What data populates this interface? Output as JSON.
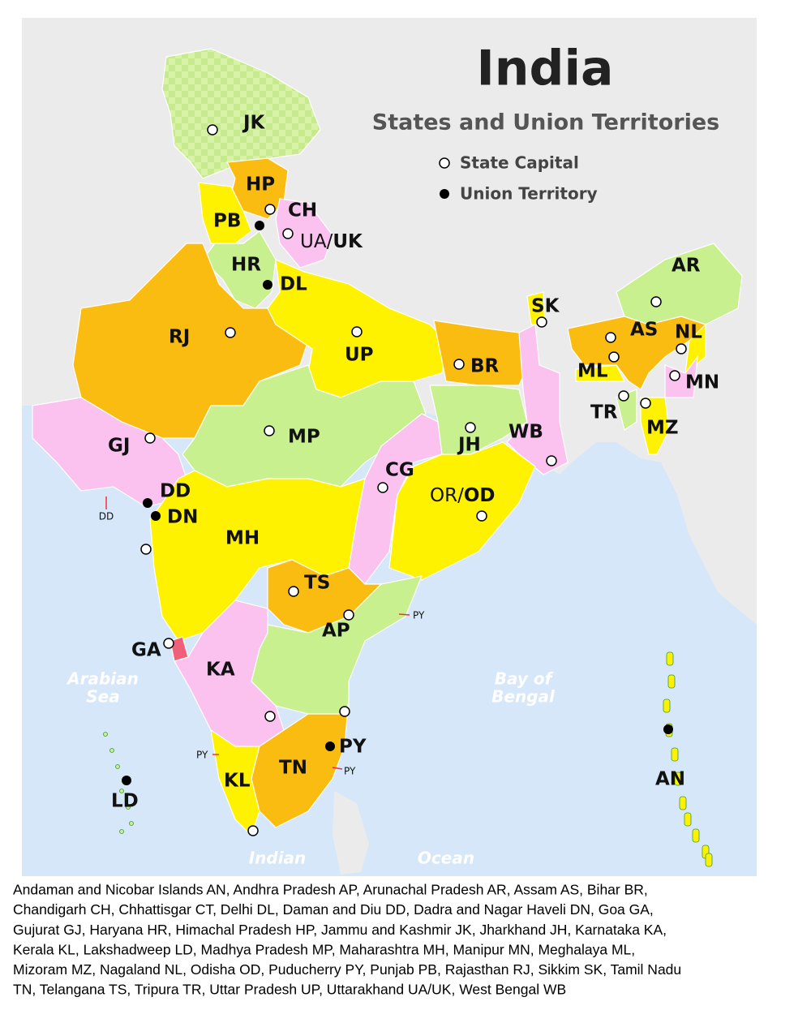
{
  "title": "India",
  "subtitle": "States and Union Territories",
  "legend": [
    {
      "label": "State Capital"
    },
    {
      "label": "Union Territory"
    }
  ],
  "regions": [
    {
      "label": "JK"
    },
    {
      "label": "HP"
    },
    {
      "label": "CH"
    },
    {
      "label": "PB"
    },
    {
      "parts": [
        "UA/",
        "UK"
      ]
    },
    {
      "label": "HR"
    },
    {
      "label": "DL"
    },
    {
      "label": "RJ"
    },
    {
      "label": "UP"
    },
    {
      "label": "BR"
    },
    {
      "label": "SK"
    },
    {
      "label": "AR"
    },
    {
      "label": "AS"
    },
    {
      "label": "NL"
    },
    {
      "label": "ML"
    },
    {
      "label": "MN"
    },
    {
      "label": "TR"
    },
    {
      "label": "MZ"
    },
    {
      "label": "GJ"
    },
    {
      "label": "MP"
    },
    {
      "label": "JH"
    },
    {
      "label": "WB"
    },
    {
      "label": "CG"
    },
    {
      "parts": [
        "OR/",
        "OD"
      ]
    },
    {
      "label": "DD"
    },
    {
      "label": "DN"
    },
    {
      "label": "MH"
    },
    {
      "label": "TS"
    },
    {
      "label": "AP"
    },
    {
      "label": "GA"
    },
    {
      "label": "KA"
    },
    {
      "label": "PY"
    },
    {
      "label": "TN"
    },
    {
      "label": "KL"
    },
    {
      "label": "LD"
    },
    {
      "label": "AN"
    }
  ],
  "small_labels": [
    "DD",
    "PY",
    "PY",
    "PY"
  ],
  "water_labels": [
    [
      "Arabian",
      "Sea"
    ],
    [
      "Bay of",
      "Bengal"
    ],
    [
      "Indian"
    ],
    [
      "Ocean"
    ]
  ],
  "footnote": [
    "Andaman and Nicobar Islands AN, Andhra Pradesh AP, Arunachal Pradesh AR, Assam AS, Bihar BR,",
    "Chandigarh CH, Chhattisgar CT, Delhi DL, Daman and Diu DD, Dadra and Nagar Haveli DN, Goa GA,",
    "Gujurat GJ, Haryana HR, Himachal Pradesh HP, Jammu and Kashmir JK, Jharkhand JH, Karnataka KA,",
    "Kerala KL, Lakshadweep LD, Madhya Pradesh MP, Maharashtra MH, Manipur MN, Meghalaya ML,",
    "Mizoram MZ, Nagaland NL, Odisha OD, Puducherry PY, Punjab PB, Rajasthan RJ, Sikkim SK, Tamil Nadu",
    "TN, Telangana TS, Tripura TR, Uttar Pradesh UP, Uttarakhand UA/UK, West Bengal WB"
  ]
}
